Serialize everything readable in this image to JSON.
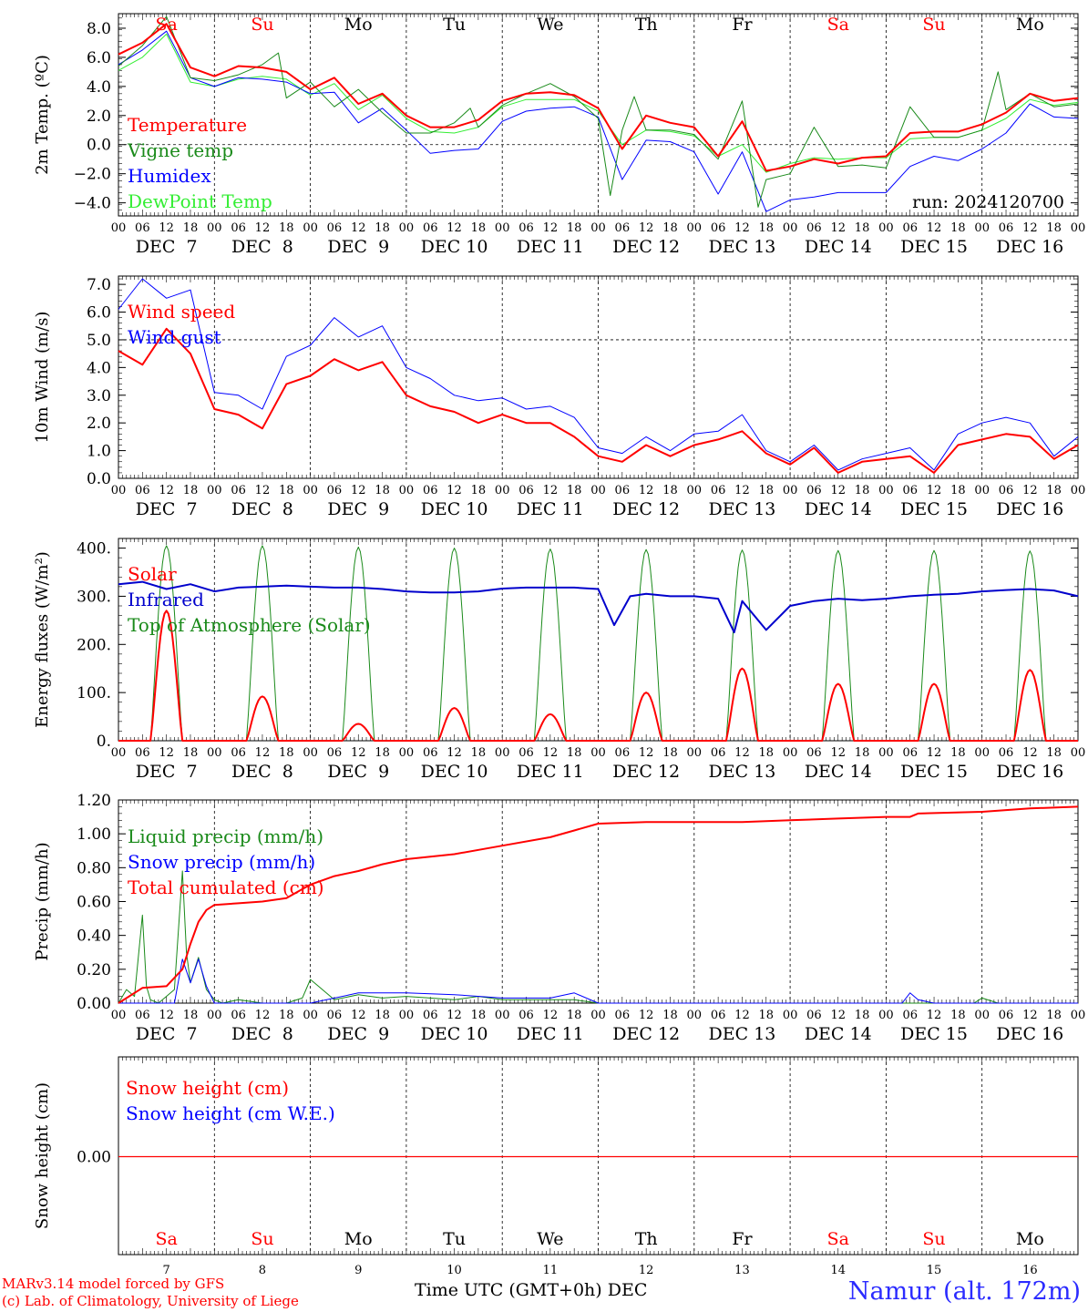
{
  "credits": {
    "line1": "MARv3.14 model forced by GFS",
    "line2": "(c) Lab. of Climatology, University of Liege"
  },
  "station": "Namur (alt. 172m)",
  "x_title": "Time UTC (GMT+0h) DEC",
  "run_label": "run: 2024120700",
  "days": {
    "weekday_labels": [
      "Sa",
      "Su",
      "Mo",
      "Tu",
      "We",
      "Th",
      "Fr",
      "Sa",
      "Su",
      "Mo"
    ],
    "weekend_color": "#ff0000",
    "weekday_color": "#000000",
    "date_labels": [
      "DEC  7",
      "DEC  8",
      "DEC  9",
      "DEC 10",
      "DEC 11",
      "DEC 12",
      "DEC 13",
      "DEC 14",
      "DEC 15",
      "DEC 16"
    ],
    "day_numbers": [
      "7",
      "8",
      "9",
      "10",
      "11",
      "12",
      "13",
      "14",
      "15",
      "16"
    ],
    "hour_ticks": [
      "00",
      "06",
      "12",
      "18"
    ],
    "final_hour_tick": "00"
  },
  "colors": {
    "red": "#ff0000",
    "green": "#1a8a1a",
    "blue": "#0000ff",
    "lightgreen": "#33ee33",
    "darkblue": "#0000cc"
  },
  "chart_data": [
    {
      "type": "line",
      "ylabel": "2m Temp. (ºC)",
      "ylim": [
        -4.9,
        9.0
      ],
      "yticks": [
        -4.0,
        -2.0,
        0.0,
        2.0,
        4.0,
        6.0,
        8.0
      ],
      "ytick_labels": [
        "−4.0",
        "−2.0",
        "0.0",
        "2.0",
        "4.0",
        "6.0",
        "8.0"
      ],
      "reference_line": 0.0,
      "x_unit": "hours since Dec 7 00 UTC",
      "series": [
        {
          "name": "Temperature",
          "color": "#ff0000",
          "width": 2,
          "x": [
            0,
            6,
            12,
            18,
            24,
            30,
            36,
            42,
            48,
            54,
            60,
            66,
            72,
            78,
            84,
            90,
            96,
            102,
            108,
            114,
            120,
            126,
            132,
            138,
            144,
            150,
            156,
            162,
            168,
            174,
            180,
            186,
            192,
            198,
            204,
            210,
            216,
            222,
            228,
            234,
            240
          ],
          "y": [
            6.2,
            7.0,
            8.3,
            5.3,
            4.7,
            5.4,
            5.3,
            5.0,
            3.8,
            4.6,
            2.8,
            3.5,
            2.0,
            1.2,
            1.2,
            1.7,
            3.0,
            3.5,
            3.6,
            3.4,
            2.5,
            -0.3,
            2.0,
            1.5,
            1.2,
            -0.8,
            1.6,
            -1.8,
            -1.5,
            -1.0,
            -1.3,
            -0.9,
            -0.8,
            0.8,
            0.9,
            0.9,
            1.4,
            2.2,
            3.5,
            3.0,
            3.2
          ]
        },
        {
          "name": "Vigne temp",
          "color": "#1a8a1a",
          "width": 1,
          "x": [
            0,
            6,
            12,
            16,
            18,
            24,
            30,
            36,
            40,
            42,
            48,
            54,
            60,
            66,
            72,
            78,
            84,
            88,
            90,
            96,
            102,
            108,
            114,
            120,
            123,
            126,
            129,
            132,
            138,
            144,
            150,
            156,
            160,
            162,
            168,
            174,
            180,
            186,
            192,
            198,
            204,
            210,
            216,
            220,
            222,
            228,
            234,
            240
          ],
          "y": [
            5.4,
            6.8,
            8.8,
            6.0,
            4.6,
            4.4,
            4.8,
            5.5,
            6.3,
            3.2,
            4.3,
            2.6,
            3.8,
            2.2,
            0.8,
            0.8,
            1.5,
            2.5,
            1.2,
            2.7,
            3.5,
            4.2,
            3.3,
            1.8,
            -3.5,
            1.0,
            3.3,
            1.0,
            1.0,
            0.7,
            -1.0,
            3.0,
            -4.3,
            -2.4,
            -2.0,
            1.2,
            -1.5,
            -1.4,
            -1.6,
            2.6,
            0.5,
            0.5,
            1.0,
            5.0,
            2.4,
            3.5,
            2.6,
            2.8
          ]
        },
        {
          "name": "Humidex",
          "color": "#0000ff",
          "width": 1,
          "x": [
            0,
            6,
            12,
            18,
            24,
            30,
            36,
            42,
            48,
            54,
            60,
            66,
            72,
            78,
            84,
            90,
            96,
            102,
            108,
            114,
            120,
            126,
            132,
            138,
            144,
            150,
            156,
            162,
            168,
            174,
            180,
            186,
            192,
            198,
            204,
            210,
            216,
            222,
            228,
            234,
            240
          ],
          "y": [
            5.5,
            6.5,
            7.8,
            4.6,
            4.0,
            4.6,
            4.5,
            4.3,
            3.5,
            3.6,
            1.5,
            2.5,
            1.0,
            -0.6,
            -0.4,
            -0.3,
            1.6,
            2.3,
            2.5,
            2.6,
            1.9,
            -2.4,
            0.3,
            0.2,
            -0.5,
            -3.4,
            -0.5,
            -4.6,
            -3.8,
            -3.6,
            -3.3,
            -3.3,
            -3.3,
            -1.5,
            -0.8,
            -1.1,
            -0.3,
            0.8,
            2.8,
            1.9,
            1.8
          ]
        },
        {
          "name": "DewPoint Temp",
          "color": "#33ee33",
          "width": 1,
          "x": [
            0,
            6,
            12,
            18,
            24,
            30,
            36,
            42,
            48,
            54,
            60,
            66,
            72,
            78,
            84,
            90,
            96,
            102,
            108,
            114,
            120,
            126,
            132,
            138,
            144,
            150,
            156,
            162,
            168,
            174,
            180,
            186,
            192,
            198,
            204,
            210,
            216,
            222,
            228,
            234,
            240
          ],
          "y": [
            5.1,
            6.0,
            7.6,
            4.3,
            4.0,
            4.5,
            4.7,
            4.5,
            3.4,
            4.2,
            2.4,
            3.4,
            1.8,
            0.9,
            0.8,
            1.2,
            2.6,
            3.1,
            3.1,
            3.1,
            2.3,
            0.0,
            1.0,
            0.9,
            0.6,
            -0.8,
            0.0,
            -1.9,
            -1.3,
            -0.9,
            -1.0,
            -0.9,
            -0.9,
            0.4,
            0.5,
            0.5,
            1.0,
            1.8,
            3.1,
            2.7,
            2.9
          ]
        }
      ]
    },
    {
      "type": "line",
      "ylabel": "10m Wind (m/s)",
      "ylim": [
        0.0,
        7.3
      ],
      "yticks": [
        0.0,
        1.0,
        2.0,
        3.0,
        4.0,
        5.0,
        6.0,
        7.0
      ],
      "ytick_labels": [
        "0.0",
        "1.0",
        "2.0",
        "3.0",
        "4.0",
        "5.0",
        "6.0",
        "7.0"
      ],
      "reference_line": 5.0,
      "x_unit": "hours since Dec 7 00 UTC",
      "series": [
        {
          "name": "Wind speed",
          "color": "#ff0000",
          "width": 2,
          "x": [
            0,
            6,
            12,
            18,
            24,
            30,
            36,
            42,
            48,
            54,
            60,
            66,
            72,
            78,
            84,
            90,
            96,
            102,
            108,
            114,
            120,
            126,
            132,
            138,
            144,
            150,
            156,
            162,
            168,
            174,
            180,
            186,
            192,
            198,
            204,
            210,
            216,
            222,
            228,
            234,
            240
          ],
          "y": [
            4.6,
            4.1,
            5.4,
            4.5,
            2.5,
            2.3,
            1.8,
            3.4,
            3.7,
            4.3,
            3.9,
            4.2,
            3.0,
            2.6,
            2.4,
            2.0,
            2.3,
            2.0,
            2.0,
            1.5,
            0.8,
            0.6,
            1.2,
            0.8,
            1.2,
            1.4,
            1.7,
            0.9,
            0.5,
            1.1,
            0.2,
            0.6,
            0.7,
            0.8,
            0.2,
            1.2,
            1.4,
            1.6,
            1.5,
            0.7,
            1.2
          ]
        },
        {
          "name": "Wind gust",
          "color": "#0000ff",
          "width": 1,
          "x": [
            0,
            6,
            12,
            18,
            24,
            30,
            36,
            42,
            48,
            54,
            60,
            66,
            72,
            78,
            84,
            90,
            96,
            102,
            108,
            114,
            120,
            126,
            132,
            138,
            144,
            150,
            156,
            162,
            168,
            174,
            180,
            186,
            192,
            198,
            204,
            210,
            216,
            222,
            228,
            234,
            240
          ],
          "y": [
            6.1,
            7.2,
            6.5,
            6.8,
            3.1,
            3.0,
            2.5,
            4.4,
            4.8,
            5.8,
            5.1,
            5.5,
            4.0,
            3.6,
            3.0,
            2.8,
            2.9,
            2.5,
            2.6,
            2.2,
            1.1,
            0.9,
            1.5,
            1.0,
            1.6,
            1.7,
            2.3,
            1.0,
            0.6,
            1.2,
            0.3,
            0.7,
            0.9,
            1.1,
            0.3,
            1.6,
            2.0,
            2.2,
            2.0,
            0.8,
            1.5
          ]
        }
      ]
    },
    {
      "type": "line",
      "ylabel": "Energy fluxes (W/m²)",
      "ylim": [
        0,
        420
      ],
      "yticks": [
        0,
        100,
        200,
        300,
        400
      ],
      "ytick_labels": [
        "0.",
        "100.",
        "200.",
        "300.",
        "400."
      ],
      "x_unit": "hours since Dec 7 00 UTC",
      "series": [
        {
          "name": "Solar",
          "color": "#ff0000",
          "width": 2,
          "daily_peaks": [
            270,
            92,
            35,
            68,
            55,
            100,
            150,
            118,
            118,
            147
          ]
        },
        {
          "name": "Infrared",
          "color": "#0000cc",
          "width": 2,
          "x": [
            0,
            6,
            12,
            18,
            24,
            30,
            36,
            42,
            48,
            54,
            60,
            66,
            72,
            78,
            84,
            90,
            96,
            102,
            108,
            114,
            120,
            124,
            128,
            132,
            138,
            144,
            150,
            154,
            156,
            162,
            168,
            174,
            180,
            186,
            192,
            198,
            204,
            210,
            216,
            222,
            228,
            234,
            240
          ],
          "y": [
            325,
            330,
            315,
            325,
            310,
            318,
            320,
            322,
            320,
            318,
            318,
            315,
            310,
            308,
            308,
            310,
            316,
            318,
            318,
            318,
            315,
            240,
            300,
            305,
            300,
            300,
            295,
            225,
            290,
            230,
            280,
            290,
            295,
            292,
            295,
            300,
            303,
            305,
            310,
            313,
            315,
            312,
            300
          ]
        },
        {
          "name": "Top of Atmosphere (Solar)",
          "color": "#1a8a1a",
          "width": 1,
          "daily_peaks": [
            405,
            405,
            402,
            400,
            398,
            397,
            396,
            395,
            395,
            394
          ]
        }
      ],
      "sun_hours": {
        "rise": 8,
        "set": 16
      }
    },
    {
      "type": "line",
      "ylabel": "Precip (mm/h)",
      "ylim": [
        0.0,
        1.2
      ],
      "yticks": [
        0.0,
        0.2,
        0.4,
        0.6,
        0.8,
        1.0,
        1.2
      ],
      "ytick_labels": [
        "0.00",
        "0.20",
        "0.40",
        "0.60",
        "0.80",
        "1.00",
        "1.20"
      ],
      "x_unit": "hours since Dec 7 00 UTC",
      "series": [
        {
          "name": "Liquid precip (mm/h)",
          "color": "#1a8a1a",
          "width": 1,
          "x": [
            0,
            2,
            4,
            6,
            7,
            8,
            10,
            14,
            16,
            17,
            18,
            20,
            22,
            24,
            26,
            30,
            36,
            42,
            46,
            48,
            50,
            54,
            60,
            66,
            72,
            78,
            84,
            90,
            96,
            102,
            108,
            114,
            120,
            180,
            214,
            216,
            220,
            240
          ],
          "y": [
            0.0,
            0.08,
            0.04,
            0.52,
            0.1,
            0.02,
            0.0,
            0.08,
            0.78,
            0.3,
            0.12,
            0.27,
            0.08,
            0.02,
            0.0,
            0.02,
            0.0,
            0.0,
            0.03,
            0.14,
            0.1,
            0.02,
            0.05,
            0.03,
            0.04,
            0.03,
            0.02,
            0.04,
            0.02,
            0.02,
            0.02,
            0.02,
            0.0,
            0.0,
            0.0,
            0.03,
            0.0,
            0.0
          ]
        },
        {
          "name": "Snow precip (mm/h)",
          "color": "#0000ff",
          "width": 1,
          "x": [
            0,
            14,
            16,
            18,
            20,
            22,
            24,
            48,
            60,
            72,
            84,
            96,
            108,
            114,
            120,
            196,
            198,
            200,
            204,
            240
          ],
          "y": [
            0.0,
            0.0,
            0.26,
            0.12,
            0.26,
            0.1,
            0.0,
            0.0,
            0.06,
            0.06,
            0.05,
            0.03,
            0.03,
            0.06,
            0.0,
            0.0,
            0.06,
            0.02,
            0.0,
            0.0
          ]
        },
        {
          "name": "Total cumulated (cm)",
          "color": "#ff0000",
          "width": 2,
          "x": [
            0,
            6,
            12,
            16,
            18,
            20,
            22,
            24,
            30,
            36,
            42,
            48,
            54,
            60,
            66,
            72,
            84,
            96,
            108,
            114,
            120,
            132,
            144,
            156,
            168,
            180,
            192,
            198,
            200,
            216,
            228,
            240
          ],
          "y": [
            0.0,
            0.09,
            0.1,
            0.2,
            0.35,
            0.48,
            0.55,
            0.58,
            0.59,
            0.6,
            0.62,
            0.7,
            0.75,
            0.78,
            0.82,
            0.85,
            0.88,
            0.93,
            0.98,
            1.02,
            1.06,
            1.07,
            1.07,
            1.07,
            1.08,
            1.09,
            1.1,
            1.1,
            1.12,
            1.13,
            1.15,
            1.16
          ]
        }
      ]
    },
    {
      "type": "line",
      "ylabel": "Snow height (cm)",
      "ytick_labels": [
        "0.00"
      ],
      "series": [
        {
          "name": "Snow height (cm)",
          "color": "#ff0000",
          "width": 1,
          "x": [
            0,
            240
          ],
          "y": [
            0.0,
            0.0
          ]
        },
        {
          "name": "Snow height (cm W.E.)",
          "color": "#0000ff",
          "width": 1,
          "x": [
            0,
            240
          ],
          "y": [
            0.0,
            0.0
          ]
        }
      ]
    }
  ]
}
